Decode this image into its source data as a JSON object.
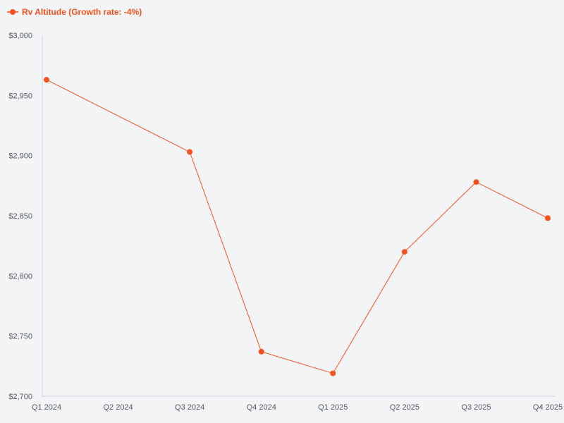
{
  "colors": {
    "background": "#f3f4f6",
    "series": "#f4511e",
    "axis": "#d0d4e4",
    "tick_text": "#555a60"
  },
  "chart_data": {
    "type": "line",
    "categories": [
      "Q1 2024",
      "Q2 2024",
      "Q3 2024",
      "Q4 2024",
      "Q1 2025",
      "Q2 2025",
      "Q3 2025",
      "Q4 2025"
    ],
    "series": [
      {
        "name": "Rv Altitude (Growth rate: -4%)",
        "values": [
          2963,
          null,
          2903,
          2737,
          2719,
          2820,
          2878,
          2848
        ]
      }
    ],
    "ylim": [
      2700,
      3000
    ],
    "yticks": [
      "$2,700",
      "$2,750",
      "$2,800",
      "$2,850",
      "$2,900",
      "$2,950",
      "$3,000"
    ],
    "ytick_values": [
      2700,
      2750,
      2800,
      2850,
      2900,
      2950,
      3000
    ],
    "grid": false,
    "legend_position": "top-left"
  }
}
